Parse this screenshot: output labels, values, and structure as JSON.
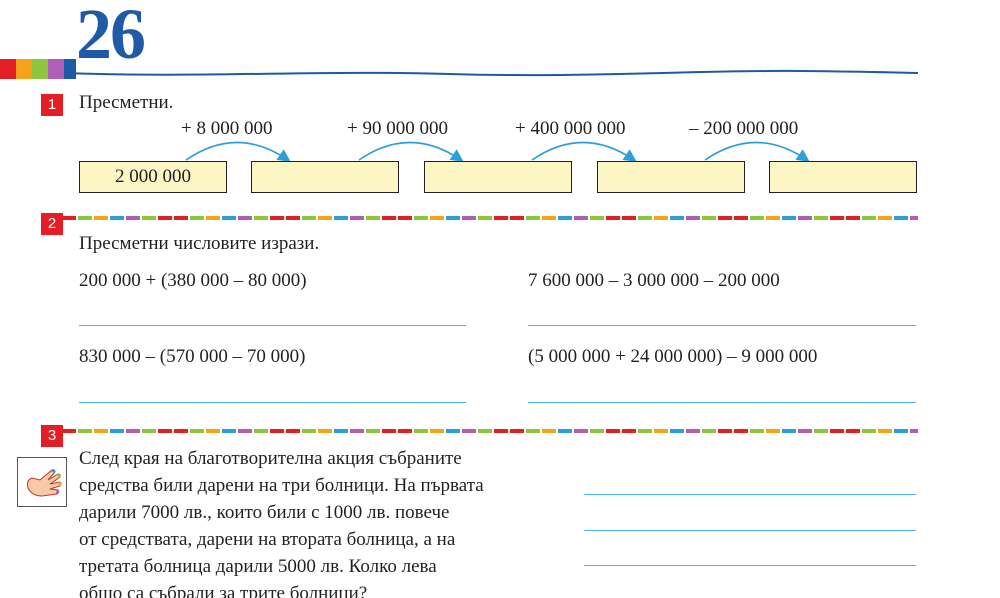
{
  "header": {
    "page_number": "26"
  },
  "colors": {
    "accent_blue": "#1f5aa6",
    "badge_red": "#e31e24",
    "box_fill": "#fcf5c4",
    "line_blue": "#4fb3e3",
    "arrow_blue": "#2a9fd8"
  },
  "task1": {
    "number": "1",
    "title": "Пресметни.",
    "start_value": "2 000 000",
    "operations": [
      "+ 8 000 000",
      "+ 90 000 000",
      "+ 400 000 000",
      "– 200 000 000"
    ]
  },
  "task2": {
    "number": "2",
    "title": "Пресметни числовите изрази.",
    "expressions": [
      "200 000 + (380 000 – 80 000)",
      "7 600 000 – 3 000 000 – 200 000",
      "830 000 – (570 000 – 70 000)",
      "(5 000 000 + 24 000 000) – 9 000 000"
    ]
  },
  "task3": {
    "number": "3",
    "lines": [
      "След края на благотворителна акция събраните",
      "средства били дарени на три болници. На първата",
      "дарили 7000 лв., които били с 1000 лв. повече",
      "от средствата, дарени на втората болница, а на",
      "третата болница дарили 5000 лв. Колко лева",
      "общо са събрали за трите болници?"
    ],
    "hint_icon": "hand-icon"
  }
}
